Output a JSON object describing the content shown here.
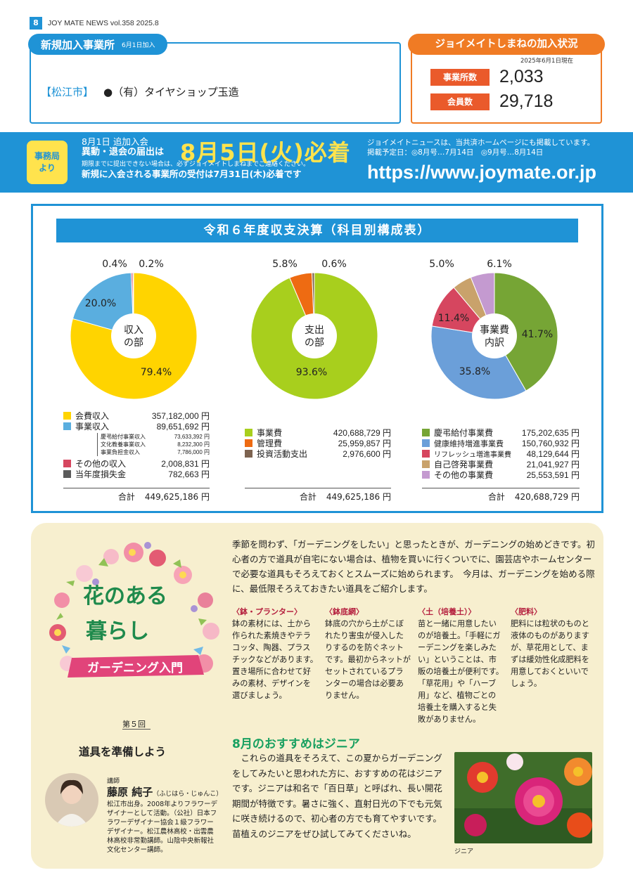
{
  "header": {
    "page_number": "8",
    "masthead": "JOY MATE NEWS  vol.358  2025.8"
  },
  "new_members": {
    "title": "新規加入事業所",
    "subtitle": "6月1日加入",
    "city": "【松江市】",
    "company": "●（有）タイヤショップ玉造"
  },
  "status": {
    "title": "ジョイメイトしまねの加入状況",
    "as_of": "2025年6月1日現在",
    "rows": [
      {
        "label": "事業所数",
        "value": "2,033"
      },
      {
        "label": "会員数",
        "value": "29,718"
      }
    ]
  },
  "notice": {
    "badge": "事務局より",
    "line1": "8月1日 追加入会",
    "line2": "異動・退会の届出は",
    "deadline": "8月5日(火)必着",
    "line3": "期限までに提出できない場合は、必ずジョイメイトしまねまでご連絡ください。",
    "line4": "新規に入会される事業所の受付は7月31日(木)必着です",
    "web1": "ジョイメイトニュースは、当共済ホームページにも掲載しています。",
    "web2": "掲載予定日：◎8月号…7月14日　◎9月号…8月14日",
    "url": "https://www.joymate.or.jp"
  },
  "finance": {
    "title": "令和６年度収支決算（科目別構成表）",
    "total_label": "合計",
    "income_total": "449,625,186 円",
    "expense_total": "449,625,186 円",
    "breakdown_total": "420,688,729 円"
  },
  "chart_data": [
    {
      "type": "pie",
      "title": "収入の部",
      "center_line1": "収入",
      "center_line2": "の部",
      "slices": [
        {
          "label": "会費収入",
          "value": 79.4,
          "amount": "357,182,000 円",
          "color": "#ffd400",
          "pct_label": "79.4%"
        },
        {
          "label": "事業収入",
          "value": 20.0,
          "amount": "89,651,692 円",
          "color": "#5aaedf",
          "pct_label": "20.0%"
        },
        {
          "label": "その他の収入",
          "value": 0.4,
          "amount": "2,008,831 円",
          "color": "#d6465f",
          "pct_label": "0.4%"
        },
        {
          "label": "当年度損失金",
          "value": 0.2,
          "amount": "782,663 円",
          "color": "#5b5b5b",
          "pct_label": "0.2%"
        }
      ],
      "sub_items": [
        {
          "label": "慶弔給付事業収入",
          "amount": "73,633,392 円"
        },
        {
          "label": "文化教養事業収入",
          "amount": "8,232,300 円"
        },
        {
          "label": "事業負担金収入",
          "amount": "7,786,000 円"
        }
      ]
    },
    {
      "type": "pie",
      "title": "支出の部",
      "center_line1": "支出",
      "center_line2": "の部",
      "slices": [
        {
          "label": "事業費",
          "value": 93.6,
          "amount": "420,688,729 円",
          "color": "#a8cf1d",
          "pct_label": "93.6%"
        },
        {
          "label": "管理費",
          "value": 5.8,
          "amount": "25,959,857 円",
          "color": "#ee6b12",
          "pct_label": "5.8%"
        },
        {
          "label": "投資活動支出",
          "value": 0.6,
          "amount": "2,976,600 円",
          "color": "#7d6350",
          "pct_label": "0.6%"
        }
      ]
    },
    {
      "type": "pie",
      "title": "事業費内訳",
      "center_line1": "事業費",
      "center_line2": "内訳",
      "slices": [
        {
          "label": "慶弔給付事業費",
          "value": 41.7,
          "amount": "175,202,635 円",
          "color": "#76a535",
          "pct_label": "41.7%"
        },
        {
          "label": "健康維持増進事業費",
          "value": 35.8,
          "amount": "150,760,932 円",
          "color": "#6b9fd9",
          "pct_label": "35.8%"
        },
        {
          "label": "リフレッシュ増進事業費",
          "value": 11.4,
          "amount": "48,129,644 円",
          "color": "#d6465f",
          "pct_label": "11.4%"
        },
        {
          "label": "自己啓発事業費",
          "value": 5.0,
          "amount": "21,041,927 円",
          "color": "#c9a26b",
          "pct_label": "5.0%"
        },
        {
          "label": "その他の事業費",
          "value": 6.1,
          "amount": "25,553,591 円",
          "color": "#c49ad0",
          "pct_label": "6.1%"
        }
      ]
    }
  ],
  "garden": {
    "title1": "花のある",
    "title2": "暮らし",
    "ribbon": "ガーデニング入門",
    "episode": "第５回",
    "episode_title": "道具を準備しよう",
    "intro": "季節を問わず、「ガーデニングをしたい」と思ったときが、ガーデニングの始めどきです。初心者の方で道具が自宅にない場合は、植物を買いに行くついでに、園芸店やホームセンターで必要な道具もそろえておくとスムーズに始められます。　今月は、ガーデニングを始める際に、最低限そろえておきたい道具をご紹介します。",
    "columns": [
      {
        "head": "〈鉢・プランター〉",
        "body": "鉢の素材には、土から作られた素焼きやテラコッタ、陶器、プラスチックなどがあります。置き場所に合わせて好みの素材、デザインを選びましょう。"
      },
      {
        "head": "〈鉢底網〉",
        "body": "鉢底の穴から土がこぼれたり害虫が侵入したりするのを防ぐネットです。最初からネットがセットされているプランターの場合は必要ありません。"
      },
      {
        "head": "〈土（培養土）〉",
        "body": "苗と一緒に用意したいのが培養土。「手軽にガーデニングを楽しみたい」ということは、市販の培養土が便利です。「草花用」や「ハーブ用」など、植物ごとの培養土を購入すると失敗がありません。"
      },
      {
        "head": "〈肥料〉",
        "body": "肥料には粒状のものと液体のものがありますが、草花用として、まずは緩効性化成肥料を用意しておくといいでしょう。"
      }
    ],
    "recommend_title": "8月のおすすめはジニア",
    "recommend_text": "　これらの道具をそろえて、この夏からガーデニングをしてみたいと思われた方に、おすすめの花はジニアです。ジニアは和名で「百日草」と呼ばれ、長い開花期間が特徴です。暑さに強く、直射日光の下でも元気に咲き続けるので、初心者の方でも育てやすいです。苗植えのジニアをぜひ試してみてくださいね。",
    "photo_caption": "ジニア",
    "teacher_label": "講師",
    "teacher_name": "藤原 純子",
    "teacher_kana": "（ふじはら・じゅんこ）",
    "teacher_bio": "松江市出身。2008年よりフラワーデザイナーとして活動。（公社）日本フラワーデザイナー協会１級フラワーデザイナー。松江農林高校・出雲農林高校非常勤講師。山陰中央新報社文化センター講師。"
  }
}
